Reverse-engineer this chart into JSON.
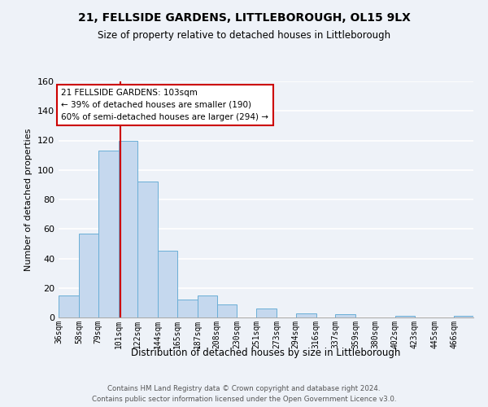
{
  "title": "21, FELLSIDE GARDENS, LITTLEBOROUGH, OL15 9LX",
  "subtitle": "Size of property relative to detached houses in Littleborough",
  "xlabel": "Distribution of detached houses by size in Littleborough",
  "ylabel": "Number of detached properties",
  "categories": [
    "36sqm",
    "58sqm",
    "79sqm",
    "101sqm",
    "122sqm",
    "144sqm",
    "165sqm",
    "187sqm",
    "208sqm",
    "230sqm",
    "251sqm",
    "273sqm",
    "294sqm",
    "316sqm",
    "337sqm",
    "359sqm",
    "380sqm",
    "402sqm",
    "423sqm",
    "445sqm",
    "466sqm"
  ],
  "values": [
    15,
    57,
    113,
    120,
    92,
    45,
    12,
    15,
    9,
    0,
    6,
    0,
    3,
    0,
    2,
    0,
    0,
    1,
    0,
    0,
    1
  ],
  "bar_color": "#c5d8ee",
  "bar_edge_color": "#6aaed6",
  "ylim": [
    0,
    160
  ],
  "yticks": [
    0,
    20,
    40,
    60,
    80,
    100,
    120,
    140,
    160
  ],
  "annotation_title": "21 FELLSIDE GARDENS: 103sqm",
  "annotation_line1": "← 39% of detached houses are smaller (190)",
  "annotation_line2": "60% of semi-detached houses are larger (294) →",
  "annotation_box_color": "#ffffff",
  "annotation_box_edge_color": "#cc0000",
  "marker_color": "#cc0000",
  "footer1": "Contains HM Land Registry data © Crown copyright and database right 2024.",
  "footer2": "Contains public sector information licensed under the Open Government Licence v3.0.",
  "background_color": "#eef2f8",
  "grid_color": "#ffffff"
}
